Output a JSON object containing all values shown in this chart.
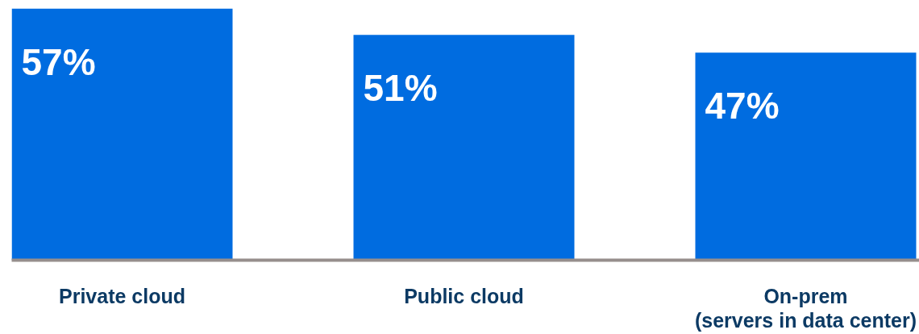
{
  "chart_data": {
    "type": "bar",
    "categories": [
      "Private cloud",
      "Public cloud",
      "On-prem\n(servers in data center)"
    ],
    "values": [
      57,
      51,
      47
    ],
    "color": "#006ce0",
    "value_labels": [
      "57%",
      "51%",
      "47%"
    ],
    "tick_labels": "x",
    "grid": false
  }
}
